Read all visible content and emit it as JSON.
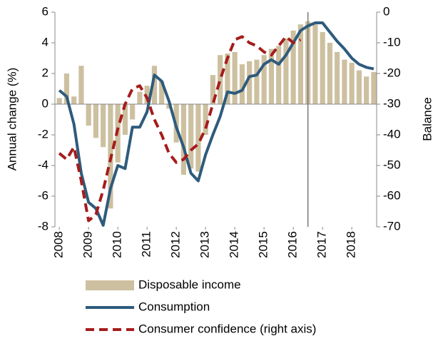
{
  "chart_data": {
    "type": "bar_line",
    "x": [
      2008,
      2008.25,
      2008.5,
      2008.75,
      2009,
      2009.25,
      2009.5,
      2009.75,
      2010,
      2010.25,
      2010.5,
      2010.75,
      2011,
      2011.25,
      2011.5,
      2011.75,
      2012,
      2012.25,
      2012.5,
      2012.75,
      2013,
      2013.25,
      2013.5,
      2013.75,
      2014,
      2014.25,
      2014.5,
      2014.75,
      2015,
      2015.25,
      2015.5,
      2015.75,
      2016,
      2016.25,
      2016.5,
      2016.75,
      2017,
      2017.25,
      2017.5,
      2017.75,
      2018,
      2018.25,
      2018.5,
      2018.75
    ],
    "series": [
      {
        "name": "Disposable income",
        "kind": "bar",
        "color": "#cdc0a0",
        "values": [
          0.4,
          2.0,
          0.5,
          2.5,
          -1.4,
          -2.2,
          -2.8,
          -6.8,
          -3.8,
          -2.0,
          -1.0,
          0.8,
          1.2,
          2.5,
          1.5,
          -0.3,
          -2.5,
          -4.6,
          -4.2,
          -4.4,
          -2.0,
          1.9,
          3.2,
          3.3,
          3.4,
          2.6,
          2.8,
          2.9,
          3.2,
          3.6,
          3.8,
          4.3,
          4.8,
          5.2,
          5.4,
          5.2,
          4.7,
          4.0,
          3.4,
          2.9,
          2.7,
          2.2,
          1.8,
          2.1
        ]
      },
      {
        "name": "Consumption",
        "kind": "line",
        "color": "#2e5b7c",
        "values": [
          0.9,
          0.5,
          -1.3,
          -4.5,
          -6.4,
          -6.8,
          -7.9,
          -5.5,
          -4.0,
          -4.2,
          -1.5,
          -1.5,
          -0.5,
          1.9,
          1.5,
          0.2,
          -1.5,
          -2.8,
          -4.5,
          -5.0,
          -3.3,
          -2.0,
          -0.8,
          0.8,
          0.7,
          0.9,
          1.8,
          1.9,
          2.6,
          2.9,
          2.6,
          3.2,
          4.0,
          4.8,
          5.1,
          5.3,
          5.3,
          4.7,
          4.1,
          3.6,
          3.0,
          2.6,
          2.4,
          2.3
        ]
      },
      {
        "name": "Consumer confidence (right axis)",
        "kind": "dashed",
        "axis": "y2",
        "color": "#a51c1c",
        "values": [
          -46,
          -48,
          -44,
          -55,
          -68,
          -66,
          -58,
          -48,
          -38,
          -30,
          -25,
          -24,
          -28,
          -35,
          -40,
          -46,
          -49,
          -48,
          -45,
          -43,
          -38,
          -30,
          -22,
          -15,
          -9,
          -8,
          -10,
          -11,
          -13,
          -14,
          -11,
          -8,
          -10,
          -9,
          null,
          null,
          null,
          null,
          null,
          null,
          null,
          null,
          null,
          null
        ]
      }
    ],
    "vline": 2016.5,
    "xlim": [
      2007.85,
      2018.85
    ],
    "xticks": [
      2008,
      2009,
      2010,
      2011,
      2012,
      2013,
      2014,
      2015,
      2016,
      2017,
      2018
    ],
    "ylim": [
      -8,
      6
    ],
    "yticks": [
      -8,
      -6,
      -4,
      -2,
      0,
      2,
      4,
      6
    ],
    "y2lim": [
      -70,
      0
    ],
    "y2ticks": [
      -70,
      -60,
      -50,
      -40,
      -30,
      -20,
      -10,
      0
    ],
    "ylabel": "Annual change (%)",
    "y2label": "Balance"
  }
}
